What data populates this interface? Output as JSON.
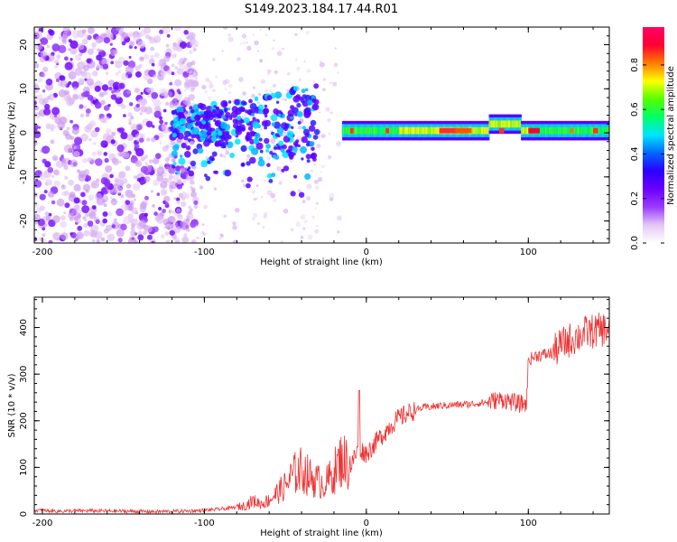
{
  "title": "S149.2023.184.17.44.R01",
  "chart_data": [
    {
      "type": "heatmap",
      "xlabel": "Height of straight line (km)",
      "ylabel": "Frequency (Hz)",
      "xlim": [
        -205,
        150
      ],
      "ylim": [
        -25,
        24
      ],
      "xticks": [
        -200,
        -100,
        0,
        100
      ],
      "yticks": [
        -20,
        -10,
        0,
        10,
        20
      ],
      "colorbar": {
        "label": "Normalized spectral amplitude",
        "range": [
          0.0,
          0.97
        ],
        "ticks": [
          0.0,
          0.2,
          0.4,
          0.6,
          0.8
        ],
        "colormap": [
          "#ffffff",
          "#e4c8f4",
          "#9a3bff",
          "#6a00ff",
          "#2a00ff",
          "#0066ff",
          "#00e5ff",
          "#00ff66",
          "#55ff00",
          "#ffff00",
          "#ff7a00",
          "#ff0033",
          "#ff0066"
        ]
      },
      "description_points": {
        "noise_region_x": [
          -205,
          -120
        ],
        "scatter_region_x": [
          -120,
          -30
        ],
        "line_region_x": [
          -15,
          150
        ],
        "line_frequency": 0.5
      }
    },
    {
      "type": "line",
      "xlabel": "Height of straight line (km)",
      "ylabel": "SNR (10 * v/v)",
      "xlim": [
        -205,
        150
      ],
      "ylim": [
        0,
        465
      ],
      "xticks": [
        -200,
        -100,
        0,
        100
      ],
      "yticks": [
        0,
        100,
        200,
        300,
        400
      ],
      "series": [
        {
          "color": "#ee3333",
          "x": [
            -205,
            -190,
            -170,
            -150,
            -130,
            -115,
            -105,
            -95,
            -85,
            -75,
            -70,
            -65,
            -60,
            -55,
            -50,
            -45,
            -40,
            -35,
            -30,
            -25,
            -20,
            -15,
            -10,
            -5,
            0,
            5,
            10,
            15,
            20,
            25,
            30,
            35,
            40,
            45,
            50,
            55,
            60,
            65,
            70,
            75,
            80,
            85,
            90,
            95,
            99,
            100,
            105,
            110,
            115,
            120,
            125,
            130,
            135,
            140,
            145,
            150
          ],
          "y": [
            8,
            6,
            7,
            6,
            5,
            6,
            7,
            9,
            12,
            18,
            28,
            22,
            30,
            45,
            60,
            85,
            95,
            80,
            70,
            65,
            90,
            120,
            100,
            140,
            130,
            150,
            170,
            190,
            205,
            215,
            222,
            228,
            230,
            232,
            233,
            234,
            235,
            236,
            238,
            240,
            244,
            246,
            240,
            236,
            238,
            330,
            340,
            342,
            345,
            362,
            372,
            380,
            388,
            392,
            395,
            398
          ]
        }
      ]
    }
  ]
}
